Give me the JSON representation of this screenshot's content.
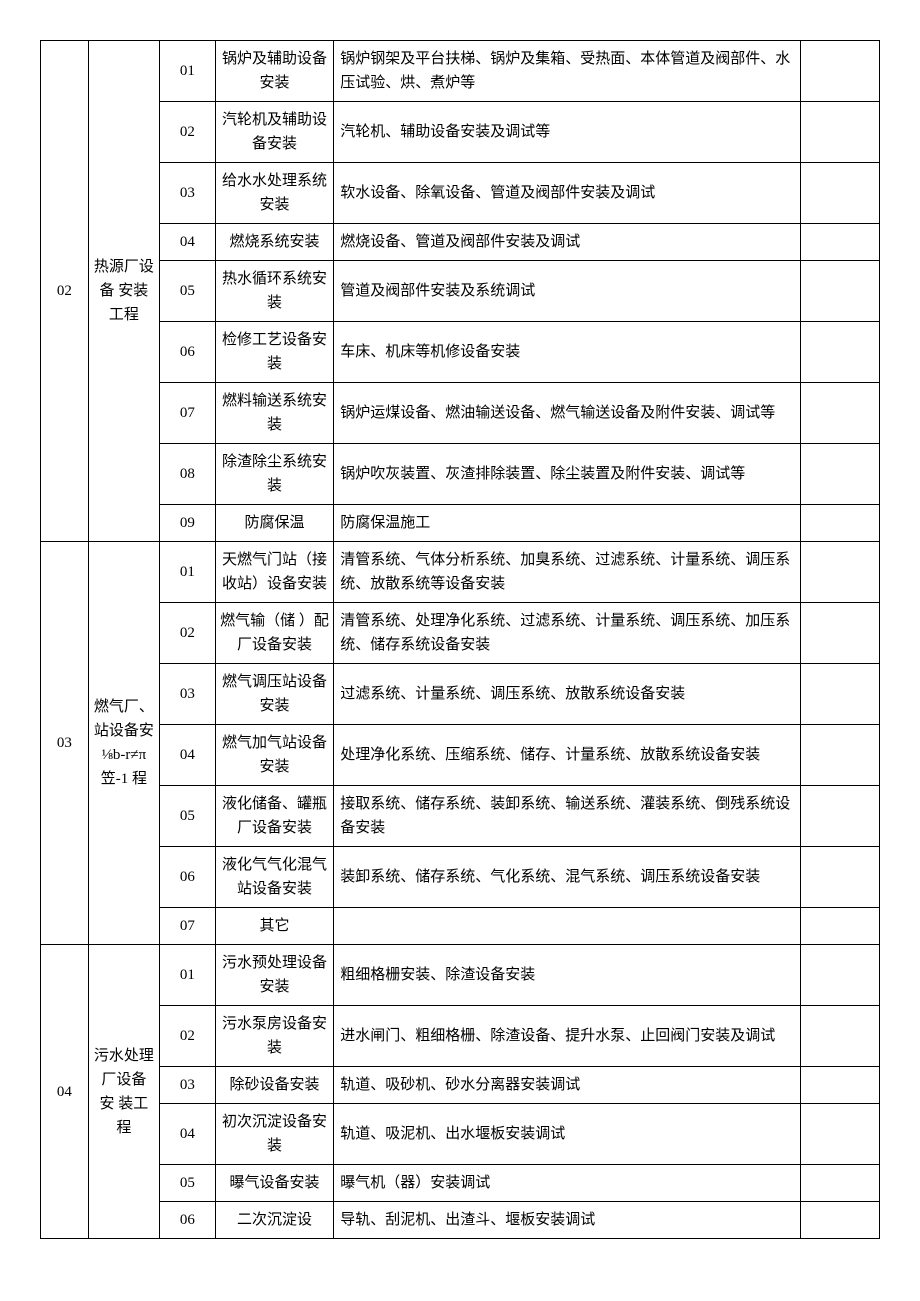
{
  "sections": [
    {
      "id": "02",
      "name": "热源厂设 备 安装工程",
      "rows": [
        {
          "num": "01",
          "item": "锅炉及辅助设备安装",
          "desc": "锅炉钢架及平台扶梯、锅炉及集箱、受热面、本体管道及阀部件、水压试验、烘、煮炉等"
        },
        {
          "num": "02",
          "item": "汽轮机及辅助设备安装",
          "desc": "汽轮机、辅助设备安装及调试等"
        },
        {
          "num": "03",
          "item": "给水水处理系统安装",
          "desc": "软水设备、除氧设备、管道及阀部件安装及调试"
        },
        {
          "num": "04",
          "item": "燃烧系统安装",
          "desc": "燃烧设备、管道及阀部件安装及调试"
        },
        {
          "num": "05",
          "item": "热水循环系统安装",
          "desc": "管道及阀部件安装及系统调试"
        },
        {
          "num": "06",
          "item": "检修工艺设备安装",
          "desc": "车床、机床等机修设备安装"
        },
        {
          "num": "07",
          "item": "燃料输送系统安装",
          "desc": "锅炉运煤设备、燃油输送设备、燃气输送设备及附件安装、调试等"
        },
        {
          "num": "08",
          "item": "除渣除尘系统安装",
          "desc": "锅炉吹灰装置、灰渣排除装置、除尘装置及附件安装、调试等"
        },
        {
          "num": "09",
          "item": "防腐保温",
          "desc": "防腐保温施工"
        }
      ]
    },
    {
      "id": "03",
      "name": "燃气厂、站设备安⅛b-r≠π笠-1 程",
      "rows": [
        {
          "num": "01",
          "item": "天燃气门站（接收站）设备安装",
          "desc": "清管系统、气体分析系统、加臭系统、过滤系统、计量系统、调压系统、放散系统等设备安装"
        },
        {
          "num": "02",
          "item": "燃气输（储 ）配厂设备安装",
          "desc": "清管系统、处理净化系统、过滤系统、计量系统、调压系统、加压系统、储存系统设备安装"
        },
        {
          "num": "03",
          "item": "燃气调压站设备安装",
          "desc": "过滤系统、计量系统、调压系统、放散系统设备安装"
        },
        {
          "num": "04",
          "item": "燃气加气站设备安装",
          "desc": "处理净化系统、压缩系统、储存、计量系统、放散系统设备安装"
        },
        {
          "num": "05",
          "item": "液化储备、罐瓶厂设备安装",
          "desc": "接取系统、储存系统、装卸系统、输送系统、灌装系统、倒残系统设备安装"
        },
        {
          "num": "06",
          "item": "液化气气化混气站设备安装",
          "desc": "装卸系统、储存系统、气化系统、混气系统、调压系统设备安装"
        },
        {
          "num": "07",
          "item": "其它",
          "desc": ""
        }
      ]
    },
    {
      "id": "04",
      "name": "污水处理厂设备 安 装工程",
      "rows": [
        {
          "num": "01",
          "item": "污水预处理设备安装",
          "desc": "粗细格栅安装、除渣设备安装"
        },
        {
          "num": "02",
          "item": "污水泵房设备安装",
          "desc": "进水闸门、粗细格栅、除渣设备、提升水泵、止回阀门安装及调试"
        },
        {
          "num": "03",
          "item": "除砂设备安装",
          "desc": "轨道、吸砂机、砂水分离器安装调试"
        },
        {
          "num": "04",
          "item": "初次沉淀设备安装",
          "desc": "轨道、吸泥机、出水堰板安装调试"
        },
        {
          "num": "05",
          "item": "曝气设备安装",
          "desc": "曝气机（器）安装调试"
        },
        {
          "num": "06",
          "item": "二次沉淀设",
          "desc": "导轨、刮泥机、出渣斗、堰板安装调试"
        }
      ]
    }
  ]
}
